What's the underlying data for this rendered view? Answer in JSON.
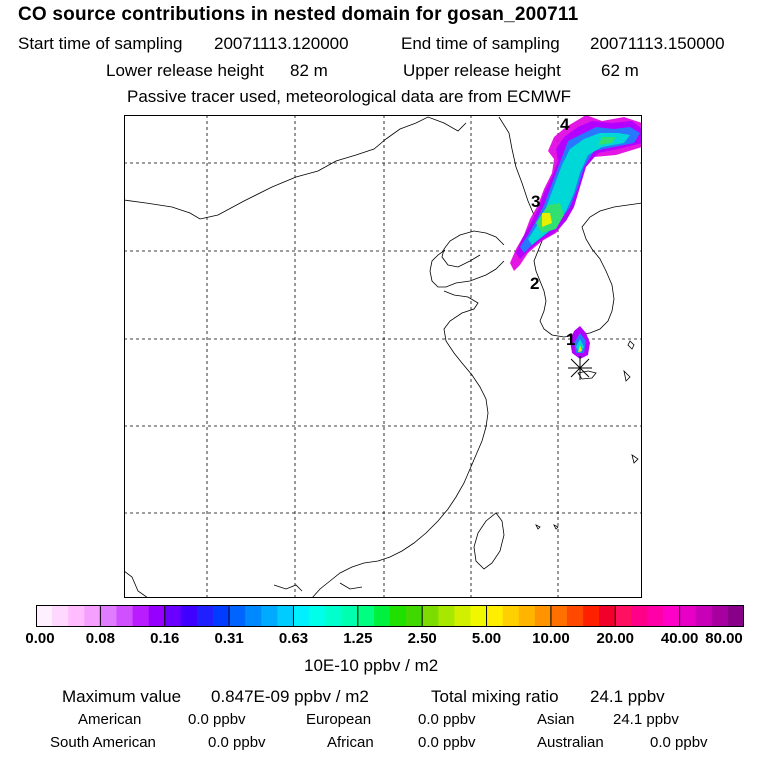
{
  "header": {
    "title": "CO  source contributions in nested domain for gosan_200711",
    "start_label": "Start time of sampling",
    "start_value": "20071113.120000",
    "end_label": "End time of sampling",
    "end_value": "20071113.150000",
    "lower_label": "Lower release height",
    "lower_value": "82 m",
    "upper_label": "Upper release height",
    "upper_value": "62 m",
    "note": "Passive tracer used, meteorological data are from ECMWF"
  },
  "map": {
    "markers": [
      "4",
      "3",
      "2",
      "1"
    ],
    "station_symbol": "asterisk",
    "colors": {
      "outline": "#000000",
      "grid": "#000000",
      "plume_magenta": "#e000e0",
      "plume_violet": "#b400ff",
      "plume_blue": "#2878ff",
      "plume_cyan": "#00d8d8",
      "plume_green": "#30e070",
      "plume_yellow": "#e8f000"
    }
  },
  "colorbar": {
    "ticks": [
      "0.00",
      "0.08",
      "0.16",
      "0.31",
      "0.63",
      "1.25",
      "2.50",
      "5.00",
      "10.00",
      "20.00",
      "40.00",
      "80.00"
    ],
    "colors": [
      [
        "#fff0ff",
        "#ffd8ff",
        "#ffbcff",
        "#f5a0ff"
      ],
      [
        "#e07cff",
        "#d050ff",
        "#b81cff",
        "#9600ff"
      ],
      [
        "#6a00ff",
        "#4000ff",
        "#2020ff",
        "#003cff"
      ],
      [
        "#0064ff",
        "#0088ff",
        "#00aaff",
        "#00ccff"
      ],
      [
        "#00f0ff",
        "#00ffe8",
        "#00ffcc",
        "#00ffae"
      ],
      [
        "#00ff80",
        "#00f040",
        "#20e000",
        "#40d800"
      ],
      [
        "#7cdc00",
        "#a8e800",
        "#d0f000",
        "#f0f800"
      ],
      [
        "#ffee00",
        "#ffd000",
        "#ffb400",
        "#ff9400"
      ],
      [
        "#ff7000",
        "#ff4800",
        "#ff2000",
        "#f0002a"
      ],
      [
        "#ff1060",
        "#ff0088",
        "#ff00a8",
        "#ff00c8"
      ],
      [
        "#e800c8",
        "#c800b8",
        "#a800a0",
        "#880088"
      ]
    ],
    "units": "10E-10 ppbv / m2"
  },
  "summary": {
    "max_label": "Maximum value",
    "max_value": "0.847E-09 ppbv / m2",
    "total_label": "Total mixing ratio",
    "total_value": "24.1 ppbv",
    "rows": [
      [
        {
          "name": "American",
          "value": "0.0 ppbv"
        },
        {
          "name": "European",
          "value": "0.0 ppbv"
        },
        {
          "name": "Asian",
          "value": "24.1 ppbv"
        }
      ],
      [
        {
          "name": "South American",
          "value": "0.0 ppbv"
        },
        {
          "name": "African",
          "value": "0.0 ppbv"
        },
        {
          "name": "Australian",
          "value": "0.0 ppbv"
        }
      ]
    ]
  }
}
